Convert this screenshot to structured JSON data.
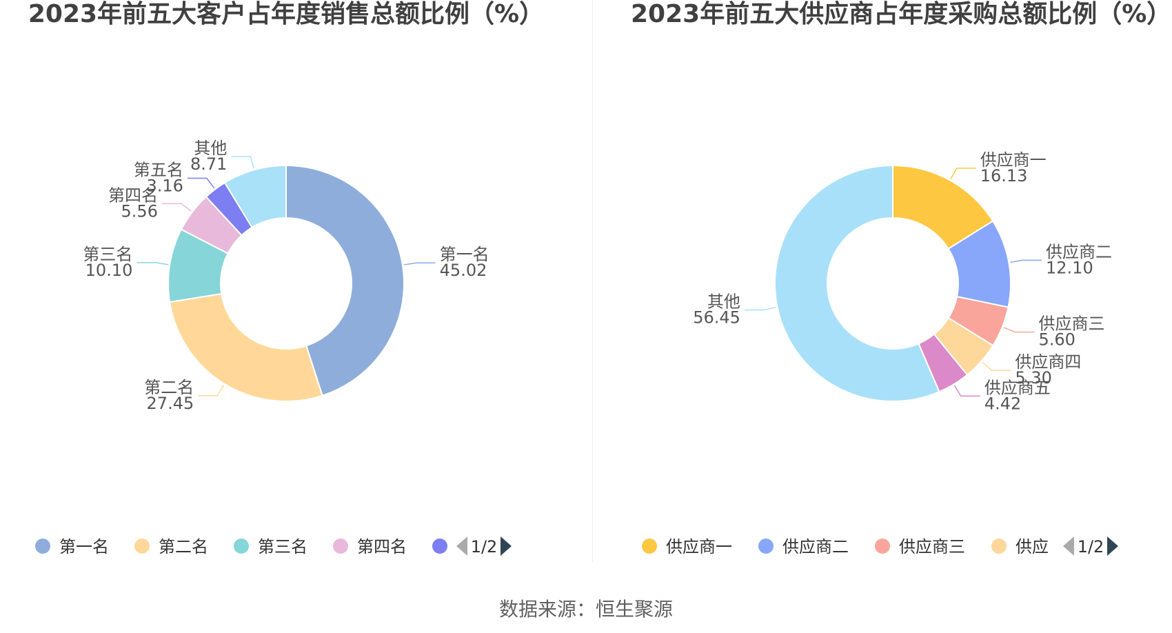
{
  "chart_data": [
    {
      "type": "pie",
      "title": "2023年前五大客户占年度销售总额比例（%）",
      "categories": [
        "第一名",
        "第二名",
        "第三名",
        "第四名",
        "第五名",
        "其他"
      ],
      "values": [
        45.02,
        27.45,
        10.1,
        5.56,
        3.16,
        8.71
      ],
      "value_labels": [
        "45.02",
        "27.45",
        "10.10",
        "5.56",
        "3.16",
        "8.71"
      ],
      "colors": [
        "#8eaddb",
        "#ffd899",
        "#86d5d8",
        "#e8b9da",
        "#7c7ef2",
        "#a8e1f8"
      ],
      "legend": {
        "placement": "bottom",
        "visible_items": [
          "第一名",
          "第二名",
          "第三名",
          "第四名",
          ""
        ],
        "page": "1/2"
      }
    },
    {
      "type": "pie",
      "title": "2023年前五大供应商占年度采购总额比例（%）",
      "categories": [
        "供应商一",
        "供应商二",
        "供应商三",
        "供应商四",
        "供应商五",
        "其他"
      ],
      "values": [
        16.13,
        12.1,
        5.6,
        5.3,
        4.42,
        56.45
      ],
      "value_labels": [
        "16.13",
        "12.10",
        "5.60",
        "5.30",
        "4.42",
        "56.45"
      ],
      "colors": [
        "#fec741",
        "#88a6fa",
        "#f9a59c",
        "#fed79a",
        "#db89c8",
        "#a8e0fa"
      ],
      "legend": {
        "placement": "bottom",
        "visible_items": [
          "供应商一",
          "供应商二",
          "供应商三",
          "供应"
        ],
        "page": "1/2"
      }
    }
  ],
  "footer": {
    "source": "数据来源：恒生聚源"
  }
}
